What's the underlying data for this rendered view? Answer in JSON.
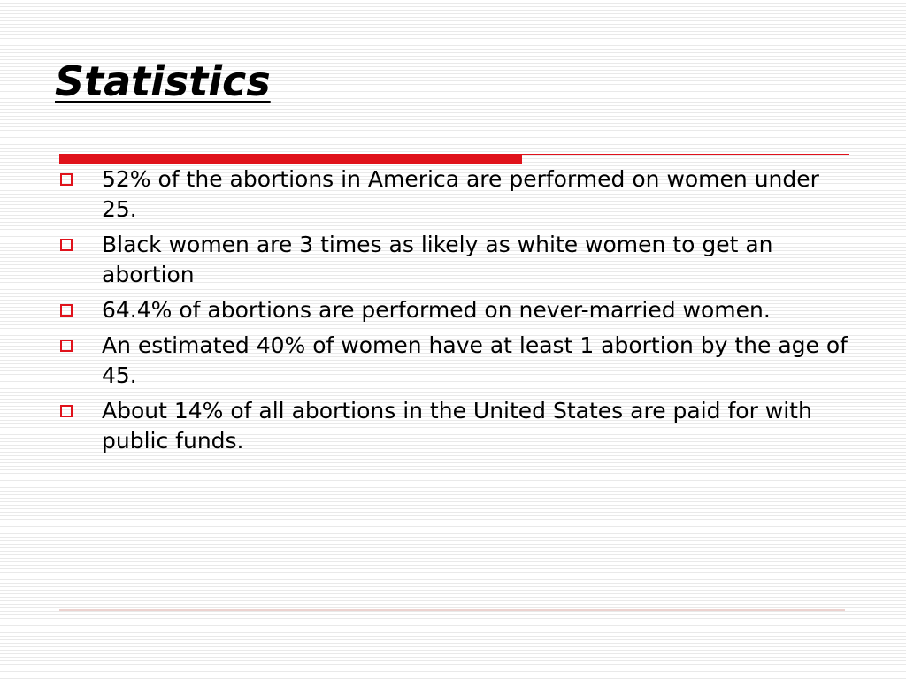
{
  "slide": {
    "title": "Statistics",
    "accent_color": "#e0121b",
    "bullets": [
      {
        "text": "52% of the abortions in America are performed on women under 25."
      },
      {
        "text": "Black women are 3 times as likely as white women to get an abortion"
      },
      {
        "text": "64.4% of abortions are performed on never-married women."
      },
      {
        "text": "An estimated 40% of women have at least 1 abortion by the age of 45."
      },
      {
        "text": "About 14% of all abortions in the United States are paid for with public funds."
      }
    ]
  }
}
